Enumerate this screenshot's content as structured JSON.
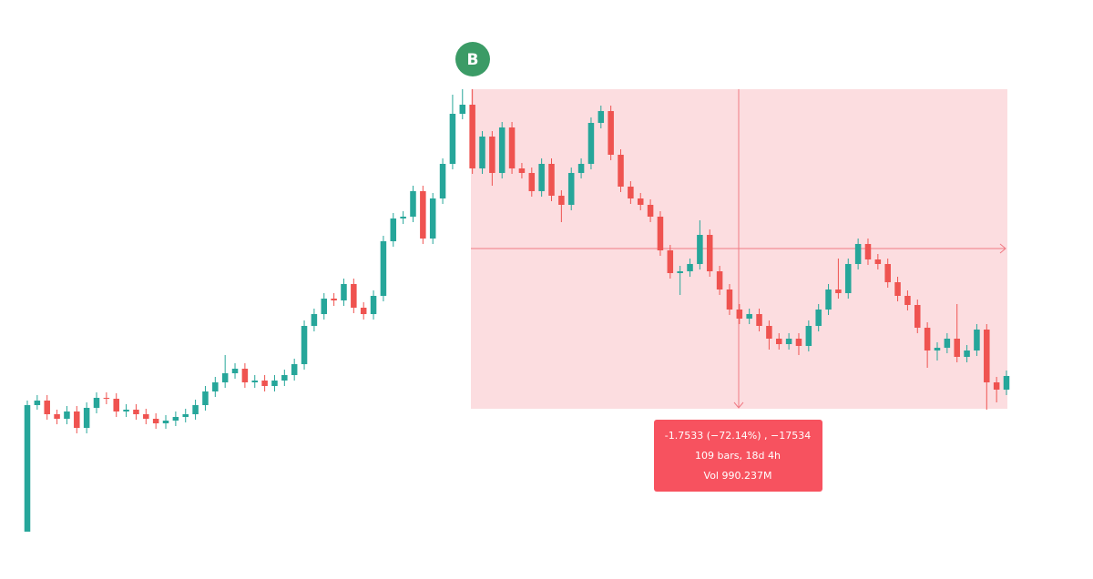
{
  "chart_data": {
    "type": "candlestick",
    "up_color": "#26a69a",
    "down_color": "#ef5350",
    "ylim": [
      0,
      2.5
    ],
    "open": [
      0.0,
      0.695,
      0.72,
      0.645,
      0.62,
      0.66,
      0.57,
      0.68,
      0.735,
      0.73,
      0.66,
      0.67,
      0.645,
      0.62,
      0.595,
      0.61,
      0.63,
      0.645,
      0.695,
      0.77,
      0.82,
      0.87,
      0.895,
      0.82,
      0.83,
      0.8,
      0.83,
      0.86,
      0.92,
      1.13,
      1.195,
      1.28,
      1.27,
      1.36,
      1.23,
      1.195,
      1.295,
      1.595,
      1.72,
      1.73,
      1.87,
      1.61,
      1.83,
      2.02,
      2.295,
      2.345,
      1.995,
      2.17,
      1.97,
      2.22,
      1.995,
      1.97,
      1.87,
      2.02,
      1.845,
      1.795,
      1.97,
      2.02,
      2.245,
      2.31,
      2.07,
      1.895,
      1.83,
      1.795,
      1.73,
      1.545,
      1.42,
      1.43,
      1.47,
      1.63,
      1.43,
      1.33,
      1.22,
      1.17,
      1.195,
      1.13,
      1.06,
      1.03,
      1.06,
      1.02,
      1.13,
      1.22,
      1.33,
      1.31,
      1.47,
      1.58,
      1.495,
      1.47,
      1.37,
      1.295,
      1.245,
      1.12,
      0.995,
      1.01,
      1.06,
      0.96,
      0.995,
      1.11,
      0.82,
      0.78
    ],
    "high": [
      0.72,
      0.75,
      0.75,
      0.67,
      0.69,
      0.69,
      0.71,
      0.765,
      0.765,
      0.76,
      0.7,
      0.7,
      0.675,
      0.65,
      0.64,
      0.66,
      0.675,
      0.725,
      0.8,
      0.85,
      0.97,
      0.925,
      0.925,
      0.86,
      0.86,
      0.86,
      0.89,
      0.95,
      1.16,
      1.225,
      1.31,
      1.31,
      1.39,
      1.39,
      1.26,
      1.325,
      1.625,
      1.75,
      1.76,
      1.9,
      1.9,
      1.86,
      2.05,
      2.4,
      2.43,
      2.43,
      2.2,
      2.2,
      2.25,
      2.25,
      2.025,
      2.0,
      2.05,
      2.05,
      1.875,
      2.0,
      2.05,
      2.275,
      2.34,
      2.34,
      2.1,
      1.925,
      1.86,
      1.825,
      1.76,
      1.575,
      1.46,
      1.5,
      1.71,
      1.66,
      1.46,
      1.36,
      1.25,
      1.225,
      1.225,
      1.16,
      1.09,
      1.09,
      1.09,
      1.16,
      1.25,
      1.36,
      1.5,
      1.5,
      1.61,
      1.61,
      1.525,
      1.5,
      1.4,
      1.325,
      1.275,
      1.15,
      1.04,
      1.09,
      1.25,
      1.025,
      1.14,
      1.14,
      0.85,
      0.885
    ],
    "low": [
      0.0,
      0.67,
      0.615,
      0.59,
      0.59,
      0.54,
      0.54,
      0.65,
      0.7,
      0.63,
      0.63,
      0.615,
      0.59,
      0.565,
      0.565,
      0.58,
      0.6,
      0.615,
      0.665,
      0.74,
      0.79,
      0.84,
      0.79,
      0.79,
      0.77,
      0.77,
      0.8,
      0.83,
      0.89,
      1.1,
      1.165,
      1.24,
      1.24,
      1.2,
      1.165,
      1.165,
      1.265,
      1.565,
      1.69,
      1.7,
      1.58,
      1.58,
      1.8,
      1.99,
      2.265,
      1.965,
      1.965,
      1.9,
      1.94,
      1.965,
      1.94,
      1.84,
      1.84,
      1.815,
      1.7,
      1.765,
      1.94,
      1.99,
      2.215,
      2.04,
      1.865,
      1.8,
      1.765,
      1.7,
      1.515,
      1.39,
      1.3,
      1.4,
      1.44,
      1.4,
      1.3,
      1.19,
      1.14,
      1.14,
      1.1,
      1.0,
      1.0,
      1.0,
      0.97,
      0.99,
      1.1,
      1.19,
      1.28,
      1.28,
      1.44,
      1.465,
      1.44,
      1.34,
      1.265,
      1.215,
      1.09,
      0.9,
      0.94,
      0.98,
      0.93,
      0.93,
      0.965,
      0.67,
      0.71,
      0.75
    ],
    "close": [
      0.695,
      0.72,
      0.645,
      0.62,
      0.66,
      0.57,
      0.68,
      0.735,
      0.73,
      0.66,
      0.67,
      0.645,
      0.62,
      0.595,
      0.61,
      0.63,
      0.645,
      0.695,
      0.77,
      0.82,
      0.87,
      0.895,
      0.82,
      0.83,
      0.8,
      0.83,
      0.86,
      0.92,
      1.13,
      1.195,
      1.28,
      1.27,
      1.36,
      1.23,
      1.195,
      1.295,
      1.595,
      1.72,
      1.73,
      1.87,
      1.61,
      1.83,
      2.02,
      2.295,
      2.345,
      1.995,
      2.17,
      1.97,
      2.22,
      1.995,
      1.97,
      1.87,
      2.02,
      1.845,
      1.795,
      1.97,
      2.02,
      2.245,
      2.31,
      2.07,
      1.895,
      1.83,
      1.795,
      1.73,
      1.545,
      1.42,
      1.43,
      1.47,
      1.63,
      1.43,
      1.33,
      1.22,
      1.17,
      1.195,
      1.13,
      1.06,
      1.03,
      1.06,
      1.02,
      1.13,
      1.22,
      1.33,
      1.31,
      1.47,
      1.58,
      1.495,
      1.47,
      1.37,
      1.295,
      1.245,
      1.12,
      0.995,
      1.01,
      1.06,
      0.96,
      0.995,
      1.11,
      0.82,
      0.78,
      0.855
    ],
    "marker": "B",
    "measure": {
      "line1": "-1.7533 (−72.14%) , −17534",
      "line2": "109 bars, 18d 4h",
      "line3": "Vol 990.237M"
    }
  }
}
